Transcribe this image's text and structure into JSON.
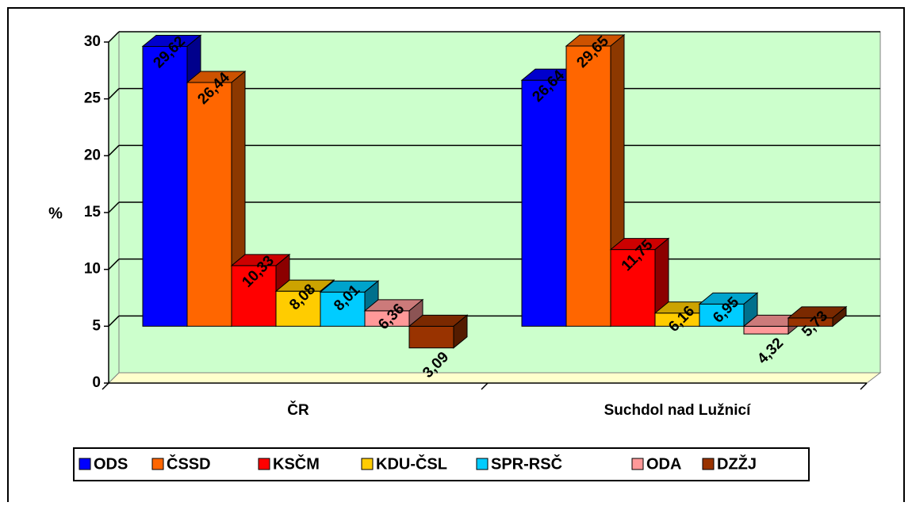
{
  "chart_data": {
    "type": "bar3d",
    "y_label": "%",
    "categories": [
      "ČR",
      "Suchdol nad Lužnicí"
    ],
    "series": [
      {
        "name": "ODS",
        "color": "#0000ff",
        "values": [
          29.62,
          26.64
        ],
        "value_labels": [
          "29,62",
          "26,64"
        ]
      },
      {
        "name": "ČSSD",
        "color": "#ff6600",
        "values": [
          26.44,
          29.65
        ],
        "value_labels": [
          "26,44",
          "29,65"
        ]
      },
      {
        "name": "KSČM",
        "color": "#ff0000",
        "values": [
          10.33,
          11.75
        ],
        "value_labels": [
          "10,33",
          "11,75"
        ]
      },
      {
        "name": "KDU-ČSL",
        "color": "#ffcc00",
        "values": [
          8.08,
          6.16
        ],
        "value_labels": [
          "8,08",
          "6,16"
        ]
      },
      {
        "name": "SPR-RSČ",
        "color": "#00ccff",
        "values": [
          8.01,
          6.95
        ],
        "value_labels": [
          "8,01",
          "6,95"
        ]
      },
      {
        "name": "ODA",
        "color": "#ff9999",
        "values": [
          6.36,
          4.32
        ],
        "value_labels": [
          "6,36",
          "4,32"
        ]
      },
      {
        "name": "DZŽJ",
        "color": "#993300",
        "values": [
          3.09,
          5.73
        ],
        "value_labels": [
          "3,09",
          "5,73"
        ]
      }
    ],
    "bar_base": 5,
    "ylim": [
      0,
      30
    ],
    "yticks": [
      0,
      5,
      10,
      15,
      20,
      25,
      30
    ],
    "grid": true,
    "legend": "bottom"
  }
}
